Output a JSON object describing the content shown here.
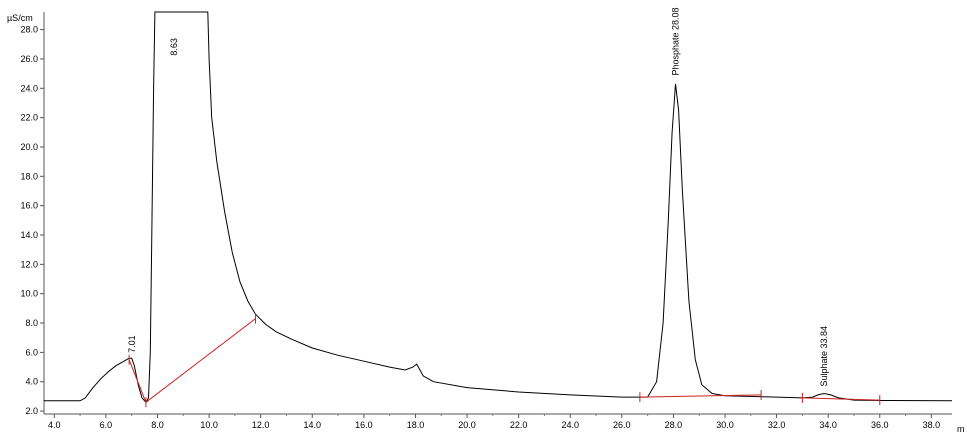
{
  "chart_data": {
    "type": "line",
    "ylabel": "µS/cm",
    "xlabel": "m",
    "xlim": [
      3.6,
      38.8
    ],
    "ylim": [
      1.8,
      29.2
    ],
    "x_ticks": [
      4.0,
      6.0,
      8.0,
      10.0,
      12.0,
      14.0,
      16.0,
      18.0,
      20.0,
      22.0,
      24.0,
      26.0,
      28.0,
      30.0,
      32.0,
      34.0,
      36.0,
      38.0
    ],
    "x_tick_labels": [
      "4.0",
      "6.0",
      "8.0",
      "10.0",
      "12.0",
      "14.0",
      "16.0",
      "18.0",
      "20.0",
      "22.0",
      "24.0",
      "26.0",
      "28.0",
      "30.0",
      "32.0",
      "34.0",
      "36.0",
      "38.0"
    ],
    "y_ticks": [
      2.0,
      4.0,
      6.0,
      8.0,
      10.0,
      12.0,
      14.0,
      16.0,
      18.0,
      20.0,
      22.0,
      24.0,
      26.0,
      28.0
    ],
    "y_tick_labels": [
      "2.0",
      "4.0",
      "6.0",
      "8.0",
      "10.0",
      "12.0",
      "14.0",
      "16.0",
      "18.0",
      "20.0",
      "22.0",
      "24.0",
      "26.0",
      "28.0"
    ],
    "grid": false,
    "series": [
      {
        "color": "#000000",
        "points": [
          [
            3.6,
            2.7
          ],
          [
            5.0,
            2.7
          ],
          [
            5.2,
            2.9
          ],
          [
            5.5,
            3.6
          ],
          [
            5.8,
            4.2
          ],
          [
            6.1,
            4.7
          ],
          [
            6.4,
            5.1
          ],
          [
            6.7,
            5.4
          ],
          [
            6.9,
            5.6
          ],
          [
            7.0,
            5.6
          ],
          [
            7.1,
            5.1
          ],
          [
            7.25,
            3.8
          ],
          [
            7.4,
            2.9
          ],
          [
            7.55,
            2.6
          ],
          [
            7.65,
            2.9
          ],
          [
            7.72,
            6.0
          ],
          [
            7.78,
            14.0
          ],
          [
            7.85,
            24.0
          ],
          [
            7.9,
            29.2
          ],
          [
            9.95,
            29.2
          ],
          [
            10.0,
            26.0
          ],
          [
            10.1,
            22.0
          ],
          [
            10.3,
            19.0
          ],
          [
            10.6,
            15.6
          ],
          [
            10.9,
            12.8
          ],
          [
            11.2,
            10.8
          ],
          [
            11.5,
            9.5
          ],
          [
            11.8,
            8.6
          ],
          [
            12.2,
            7.9
          ],
          [
            12.6,
            7.4
          ],
          [
            13.2,
            6.9
          ],
          [
            14.0,
            6.3
          ],
          [
            15.0,
            5.8
          ],
          [
            16.0,
            5.4
          ],
          [
            17.0,
            5.0
          ],
          [
            17.6,
            4.8
          ],
          [
            17.9,
            5.0
          ],
          [
            18.05,
            5.2
          ],
          [
            18.3,
            4.4
          ],
          [
            18.7,
            4.0
          ],
          [
            20.0,
            3.6
          ],
          [
            22.0,
            3.3
          ],
          [
            24.0,
            3.1
          ],
          [
            26.0,
            2.95
          ],
          [
            27.0,
            2.95
          ],
          [
            27.35,
            4.0
          ],
          [
            27.6,
            8.0
          ],
          [
            27.8,
            15.0
          ],
          [
            27.95,
            21.0
          ],
          [
            28.08,
            24.3
          ],
          [
            28.2,
            22.5
          ],
          [
            28.35,
            17.0
          ],
          [
            28.6,
            9.5
          ],
          [
            28.85,
            5.5
          ],
          [
            29.1,
            3.8
          ],
          [
            29.5,
            3.2
          ],
          [
            30.0,
            3.05
          ],
          [
            32.0,
            2.95
          ],
          [
            33.0,
            2.9
          ],
          [
            33.4,
            2.95
          ],
          [
            33.6,
            3.1
          ],
          [
            33.84,
            3.2
          ],
          [
            34.1,
            3.1
          ],
          [
            34.4,
            2.9
          ],
          [
            35.0,
            2.75
          ],
          [
            36.0,
            2.72
          ],
          [
            38.8,
            2.7
          ]
        ]
      }
    ],
    "baselines": [
      {
        "color": "#cc2222",
        "points": [
          [
            6.9,
            5.5
          ],
          [
            7.55,
            2.6
          ]
        ]
      },
      {
        "color": "#cc2222",
        "points": [
          [
            7.55,
            2.6
          ],
          [
            11.8,
            8.3
          ]
        ]
      },
      {
        "color": "#cc2222",
        "points": [
          [
            26.7,
            2.95
          ],
          [
            31.4,
            3.1
          ]
        ]
      },
      {
        "color": "#cc2222",
        "points": [
          [
            33.0,
            2.9
          ],
          [
            36.0,
            2.75
          ]
        ]
      }
    ],
    "markers": [
      [
        6.9,
        5.5
      ],
      [
        7.55,
        2.6
      ],
      [
        11.8,
        8.3
      ],
      [
        26.7,
        2.95
      ],
      [
        31.4,
        3.1
      ],
      [
        33.0,
        2.9
      ],
      [
        36.0,
        2.75
      ]
    ],
    "peak_labels": [
      {
        "text": "7.01",
        "x": 7.01,
        "y": 5.7
      },
      {
        "text": "8.63",
        "x": 8.63,
        "y": 29.2
      },
      {
        "text": "Phosphate 28.08",
        "x": 28.08,
        "y": 24.6
      },
      {
        "text": "Sulphate 33.84",
        "x": 33.84,
        "y": 3.4
      }
    ]
  }
}
